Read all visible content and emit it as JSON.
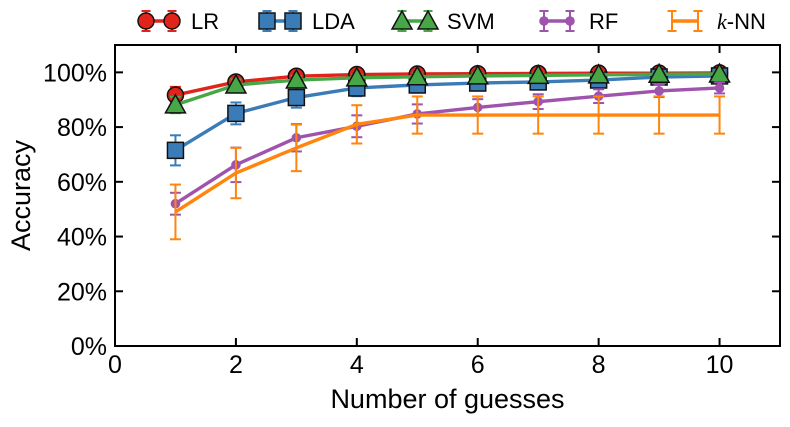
{
  "figure": {
    "background": "#ffffff",
    "axis_color": "#000000",
    "xlabel": "Number of guesses",
    "ylabel": "Accuracy"
  },
  "chart_data": {
    "type": "line",
    "title": "",
    "xlabel": "Number of guesses",
    "ylabel": "Accuracy",
    "xlim": [
      0,
      11
    ],
    "ylim": [
      0,
      110
    ],
    "x_ticks": [
      0,
      2,
      4,
      6,
      8,
      10
    ],
    "x_tick_labels": [
      "0",
      "2",
      "4",
      "6",
      "8",
      "10"
    ],
    "y_ticks": [
      0,
      20,
      40,
      60,
      80,
      100
    ],
    "y_tick_labels": [
      "0%",
      "20%",
      "40%",
      "60%",
      "80%",
      "100%"
    ],
    "grid": false,
    "legend_position": "top",
    "error_bars": true,
    "x": [
      1,
      2,
      3,
      4,
      5,
      6,
      7,
      8,
      9,
      10
    ],
    "series": [
      {
        "name": "LR",
        "label_parts": [
          {
            "text": "LR",
            "italic": false
          }
        ],
        "color": "#e0241c",
        "marker": "circle",
        "values": [
          91.7,
          96.5,
          98.6,
          99.2,
          99.4,
          99.5,
          99.6,
          99.7,
          99.7,
          99.8
        ],
        "errors": [
          3,
          1.5,
          1,
          0.8,
          0.8,
          0.8,
          0.8,
          0.8,
          0.8,
          0.8
        ]
      },
      {
        "name": "LDA",
        "label_parts": [
          {
            "text": "LDA",
            "italic": false
          }
        ],
        "color": "#3a7cb8",
        "marker": "square",
        "values": [
          71.5,
          85,
          90.8,
          94.3,
          95.4,
          96.1,
          96.5,
          97.2,
          98.3,
          98.7
        ],
        "errors": [
          5.5,
          4,
          3.7,
          3,
          2.8,
          2.5,
          2.2,
          2,
          1.5,
          1.3
        ]
      },
      {
        "name": "SVM",
        "label_parts": [
          {
            "text": "SVM",
            "italic": false
          }
        ],
        "color": "#47a747",
        "marker": "triangle",
        "values": [
          88.1,
          95.4,
          97.2,
          98,
          98.4,
          98.7,
          98.9,
          99.1,
          99.3,
          99.4
        ],
        "errors": [
          3,
          2,
          1.5,
          1.2,
          1.2,
          1,
          1,
          1,
          1,
          1
        ]
      },
      {
        "name": "RF",
        "label_parts": [
          {
            "text": "RF",
            "italic": false
          }
        ],
        "color": "#9e54ad",
        "marker": "dot",
        "values": [
          52,
          66.2,
          76.1,
          80.3,
          84.8,
          87.2,
          89.3,
          91.3,
          93.2,
          94.3
        ],
        "errors": [
          4,
          6.3,
          5,
          4,
          3.5,
          3,
          2.7,
          2.5,
          2.2,
          2
        ]
      },
      {
        "name": "k-NN",
        "label_parts": [
          {
            "text": "k",
            "italic": true
          },
          {
            "text": "-NN",
            "italic": false
          }
        ],
        "color": "#ff850d",
        "marker": "none",
        "values": [
          49,
          63.2,
          72.4,
          81,
          84.4,
          84.4,
          84.4,
          84.4,
          84.4,
          84.4
        ],
        "errors": [
          10,
          9.2,
          8.5,
          7,
          6.8,
          6.8,
          6.8,
          6.8,
          6.8,
          6.8
        ]
      }
    ]
  }
}
